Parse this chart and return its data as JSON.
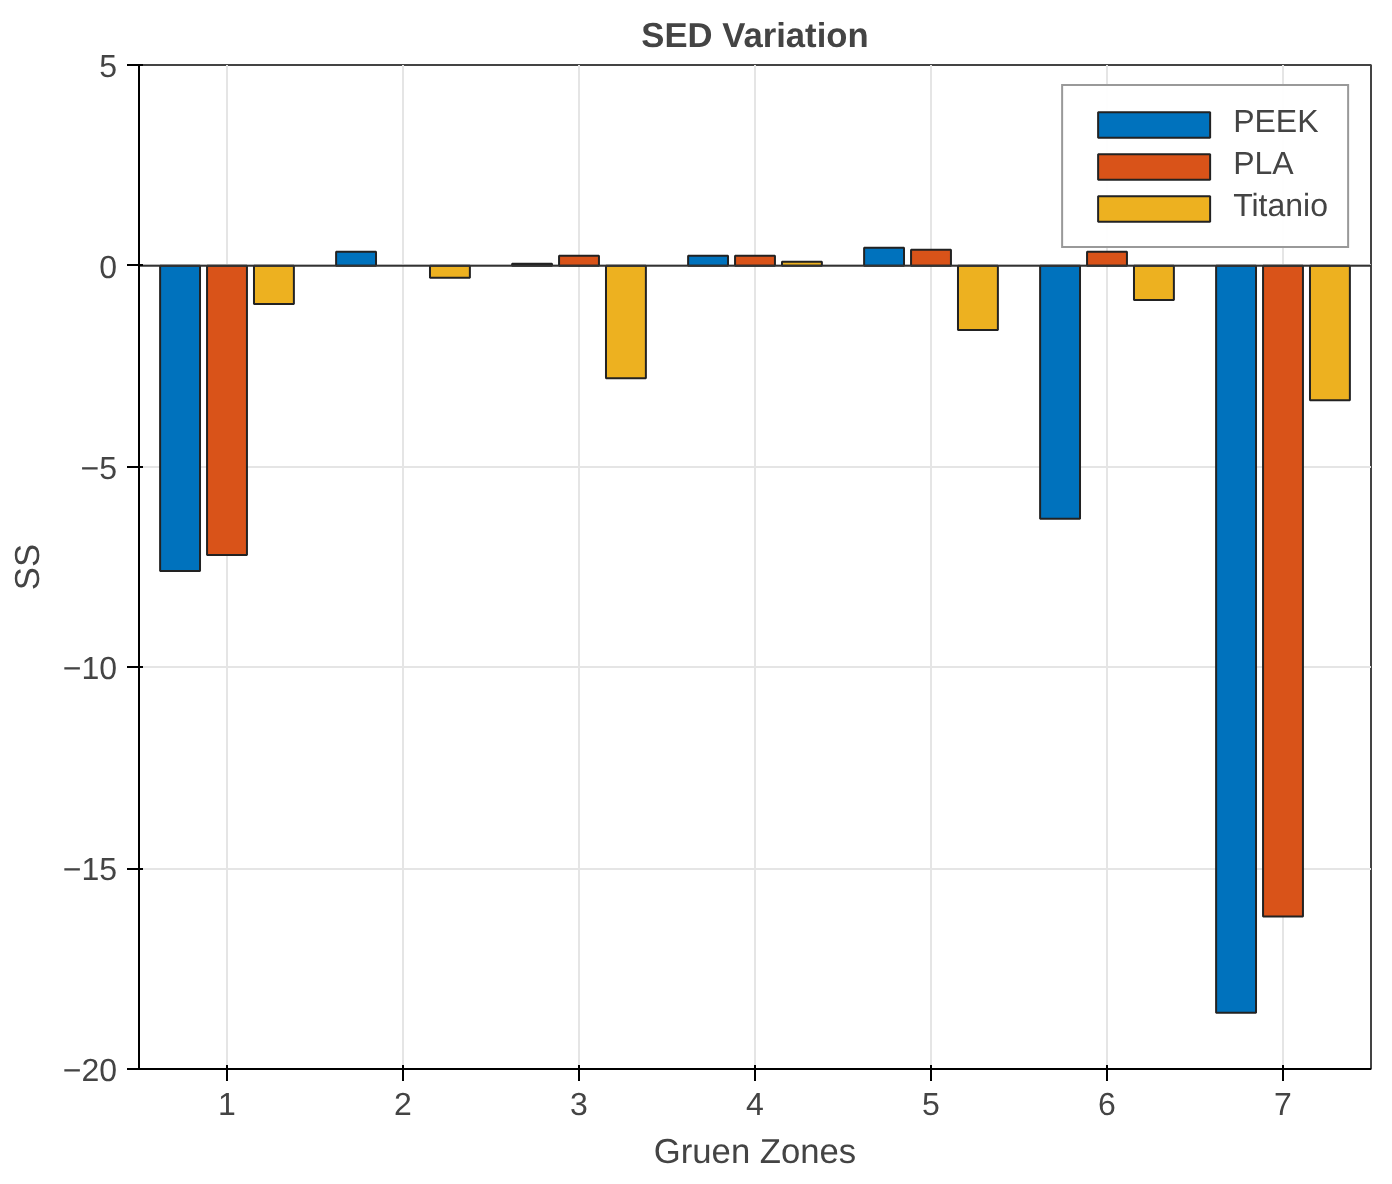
{
  "chart_data": {
    "type": "bar",
    "title": "SED Variation",
    "xlabel": "Gruen Zones",
    "ylabel": "SS",
    "categories": [
      "1",
      "2",
      "3",
      "4",
      "5",
      "6",
      "7"
    ],
    "series": [
      {
        "name": "PEEK",
        "color": "#0072bd",
        "values": [
          -7.6,
          0.35,
          0.05,
          0.25,
          0.45,
          -6.3,
          -18.6
        ]
      },
      {
        "name": "PLA",
        "color": "#d95319",
        "values": [
          -7.2,
          null,
          0.25,
          0.25,
          0.4,
          0.35,
          -16.2
        ]
      },
      {
        "name": "Titanio",
        "color": "#edb120",
        "values": [
          -0.95,
          -0.3,
          -2.8,
          0.1,
          -1.6,
          -0.85,
          -3.35
        ]
      }
    ],
    "ylim": [
      -20,
      5
    ],
    "yticks": [
      -20,
      -15,
      -10,
      -5,
      0,
      5
    ],
    "grid": true,
    "legend": "top right"
  }
}
